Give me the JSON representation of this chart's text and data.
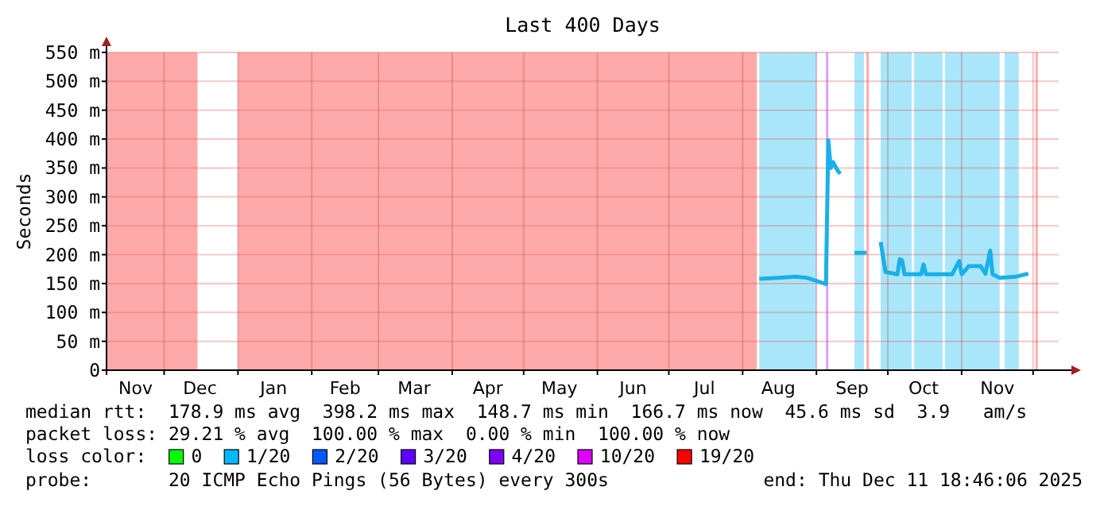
{
  "chart_data": {
    "type": "line",
    "title": "Last 400 Days",
    "ylabel": "Seconds",
    "xlim": [
      "2024-11-06T18:46",
      "2025-12-11T18:46"
    ],
    "xticks": [
      {
        "value": "2024-11-19",
        "label": "Nov"
      },
      {
        "value": "2024-12-01",
        "label": null
      },
      {
        "value": "2024-12-16",
        "label": "Dec"
      },
      {
        "value": "2025-01-01",
        "label": null
      },
      {
        "value": "2025-01-16",
        "label": "Jan"
      },
      {
        "value": "2025-02-01",
        "label": null
      },
      {
        "value": "2025-02-15",
        "label": "Feb"
      },
      {
        "value": "2025-03-01",
        "label": null
      },
      {
        "value": "2025-03-16",
        "label": "Mar"
      },
      {
        "value": "2025-04-01",
        "label": null
      },
      {
        "value": "2025-04-16",
        "label": "Apr"
      },
      {
        "value": "2025-05-01",
        "label": null
      },
      {
        "value": "2025-05-16",
        "label": "May"
      },
      {
        "value": "2025-06-01",
        "label": null
      },
      {
        "value": "2025-06-16",
        "label": "Jun"
      },
      {
        "value": "2025-07-01",
        "label": null
      },
      {
        "value": "2025-07-16",
        "label": "Jul"
      },
      {
        "value": "2025-08-01",
        "label": null
      },
      {
        "value": "2025-08-16",
        "label": "Aug"
      },
      {
        "value": "2025-09-01",
        "label": null
      },
      {
        "value": "2025-09-16",
        "label": "Sep"
      },
      {
        "value": "2025-10-01",
        "label": null
      },
      {
        "value": "2025-10-16",
        "label": "Oct"
      },
      {
        "value": "2025-11-01",
        "label": null
      },
      {
        "value": "2025-11-16",
        "label": "Nov"
      },
      {
        "value": "2025-12-01",
        "label": null
      }
    ],
    "ylim": [
      0,
      550
    ],
    "yticks": [
      0,
      {
        "value": 50,
        "label": "50 m"
      },
      {
        "value": 100,
        "label": "100 m"
      },
      {
        "value": 150,
        "label": "150 m"
      },
      {
        "value": 200,
        "label": "200 m"
      },
      {
        "value": 250,
        "label": "250 m"
      },
      {
        "value": 300,
        "label": "300 m"
      },
      {
        "value": 350,
        "label": "350 m"
      },
      {
        "value": 400,
        "label": "400 m"
      },
      {
        "value": 450,
        "label": "450 m"
      },
      {
        "value": 500,
        "label": "500 m"
      },
      {
        "value": 550,
        "label": "550 m"
      }
    ],
    "grid": true,
    "marker": "none",
    "line_style": "solid",
    "bands": [
      {
        "axis": "x",
        "from": "2024-11-06T18:46",
        "to": "2024-12-15",
        "color": "#ffaaaa"
      },
      {
        "axis": "x",
        "from": "2025-01-01",
        "to": "2025-08-07",
        "color": "#ffaaaa"
      },
      {
        "axis": "x",
        "from": "2025-08-08",
        "to": "2025-09-01",
        "color": "#aae6fa"
      },
      {
        "axis": "x",
        "from": "2025-09-05",
        "to": "2025-09-06",
        "color": "#dda0ff"
      },
      {
        "axis": "x",
        "from": "2025-09-17",
        "to": "2025-09-21",
        "color": "#aae6fa"
      },
      {
        "axis": "x",
        "from": "2025-09-22",
        "to": "2025-09-23",
        "color": "#ffaaaa"
      },
      {
        "axis": "x",
        "from": "2025-09-28",
        "to": "2025-10-11",
        "color": "#aae6fa"
      },
      {
        "axis": "x",
        "from": "2025-10-12",
        "to": "2025-10-24",
        "color": "#aae6fa"
      },
      {
        "axis": "x",
        "from": "2025-10-25",
        "to": "2025-11-17",
        "color": "#aae6fa"
      },
      {
        "axis": "x",
        "from": "2025-11-19",
        "to": "2025-11-25",
        "color": "#aae6fa"
      },
      {
        "axis": "x",
        "from": "2025-12-02",
        "to": "2025-12-03",
        "color": "#ffaaaa"
      }
    ],
    "series": [
      {
        "color": "#1ab0e8",
        "x": [
          "2025-08-08",
          "2025-08-16",
          "2025-08-23",
          "2025-08-28",
          "2025-09-05",
          "2025-09-06",
          "2025-09-07",
          "2025-09-08",
          "2025-09-10",
          "2025-09-11",
          "2025-09-14",
          "2025-09-17",
          "2025-09-22",
          "2025-09-25",
          "2025-09-28",
          "2025-09-30",
          "2025-10-05",
          "2025-10-06",
          "2025-10-07",
          "2025-10-08",
          "2025-10-15",
          "2025-10-16",
          "2025-10-17",
          "2025-10-28",
          "2025-10-31",
          "2025-11-01",
          "2025-11-04",
          "2025-11-09",
          "2025-11-11",
          "2025-11-13",
          "2025-11-14",
          "2025-11-17",
          "2025-11-24",
          "2025-11-29"
        ],
        "values": [
          158,
          160,
          162,
          160,
          149,
          398,
          350,
          360,
          345,
          340,
          null,
          203,
          203,
          null,
          222,
          170,
          166,
          192,
          190,
          166,
          166,
          183,
          166,
          166,
          189,
          166,
          180,
          180,
          167,
          207,
          166,
          160,
          162,
          167
        ]
      }
    ],
    "annotations": [
      "median rtt:  178.9 ms avg  398.2 ms max  148.7 ms min  166.7 ms now  45.6 ms sd  3.9   am/s",
      "packet loss: 29.21 % avg  100.00 % max  0.00 % min  100.00 % now",
      "loss color:",
      "0",
      "1/20",
      "2/20",
      "3/20",
      "4/20",
      "10/20",
      "19/20",
      "probe:       20 ICMP Echo Pings (56 Bytes) every 300s",
      "end: Thu Dec 11 18:46:06 2025"
    ]
  }
}
